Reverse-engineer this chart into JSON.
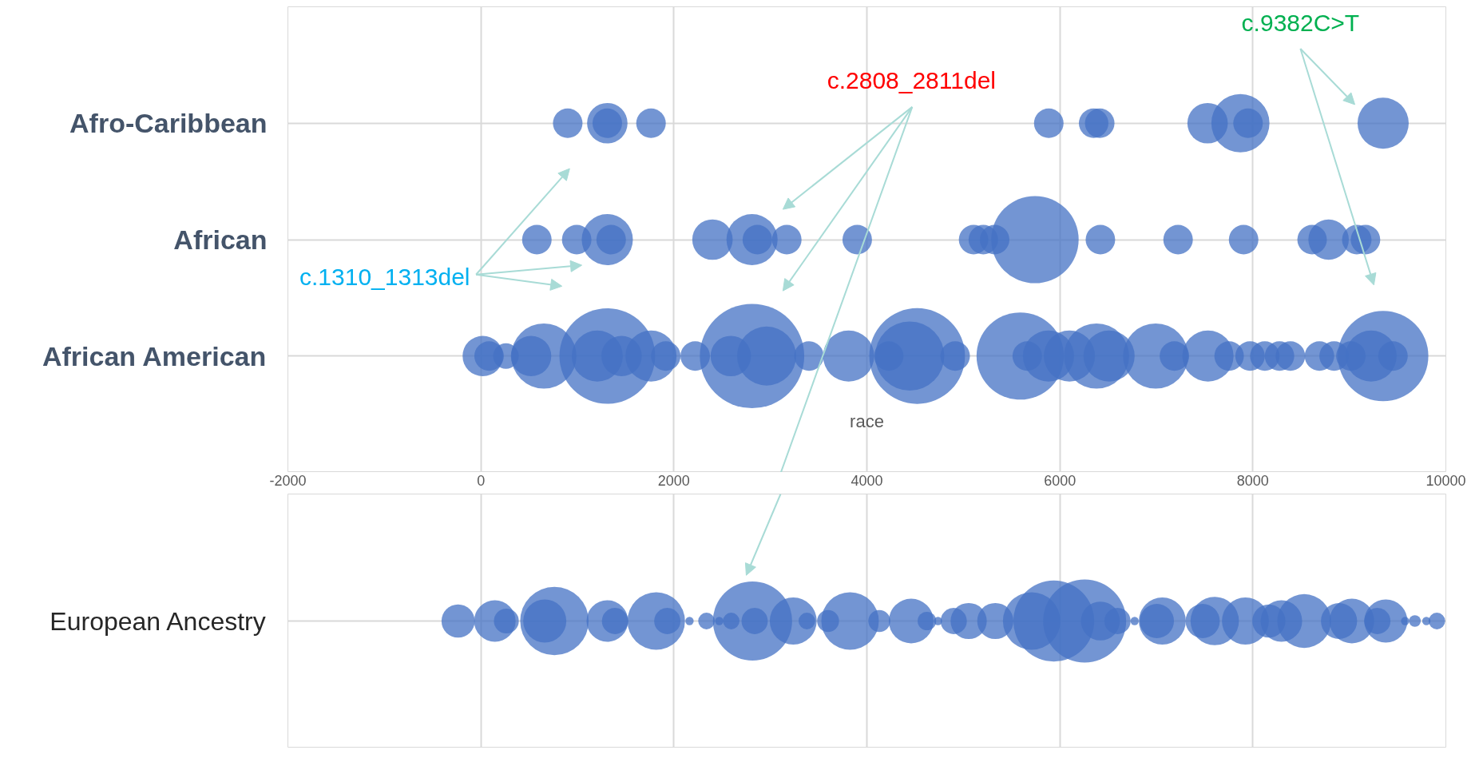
{
  "chart_data": [
    {
      "type": "bubble",
      "orientation": "horizontal",
      "xlabel": "race",
      "xlim": [
        -2000,
        10000
      ],
      "xticks": [
        -2000,
        0,
        2000,
        4000,
        6000,
        8000,
        10000
      ],
      "grid": true,
      "tick_labels": "y",
      "categories": [
        "Afro-Caribbean",
        "African",
        "African American"
      ],
      "annotations": [
        "c.1310_1313del",
        "c.2808_2811del",
        "c.9382C>T"
      ],
      "series": [
        {
          "color": "#4472c4",
          "values": [
            900,
            580,
            20
          ],
          "sizes": [
            0.08,
            0.08,
            0.15
          ]
        },
        {
          "color": "#4472c4",
          "values": [
            1310,
            993,
            85
          ],
          "sizes": [
            0.15,
            0.08,
            0.08
          ]
        },
        {
          "color": "#4472c4",
          "values": [
            1310,
            1310,
            260
          ],
          "sizes": [
            0.08,
            0.24,
            0.06
          ]
        },
        {
          "color": "#4472c4",
          "values": [
            1763,
            1350,
            520
          ],
          "sizes": [
            0.08,
            0.08,
            0.15
          ]
        },
        {
          "color": "#4472c4",
          "values": [
            5885,
            2400,
            653
          ],
          "sizes": [
            0.08,
            0.15,
            0.39
          ]
        },
        {
          "color": "#4472c4",
          "values": [
            6350,
            2810,
            1206
          ],
          "sizes": [
            0.08,
            0.24,
            0.24
          ]
        },
        {
          "color": "#4472c4",
          "values": [
            6413,
            2865,
            1310
          ],
          "sizes": [
            0.08,
            0.08,
            0.84
          ]
        },
        {
          "color": "#4472c4",
          "values": [
            7531,
            3170,
            1458
          ],
          "sizes": [
            0.15,
            0.08,
            0.15
          ]
        },
        {
          "color": "#4472c4",
          "values": [
            7871,
            3900,
            1763
          ],
          "sizes": [
            0.31,
            0.08,
            0.24
          ]
        },
        {
          "color": "#4472c4",
          "values": [
            7950,
            5106,
            1916
          ],
          "sizes": [
            0.08,
            0.08,
            0.08
          ]
        },
        {
          "color": "#4472c4",
          "values": [
            9350,
            5207,
            2221
          ],
          "sizes": [
            0.24,
            0.08,
            0.08
          ]
        },
        {
          "color": "#4472c4",
          "values": [
            null,
            5324,
            2590
          ],
          "sizes": [
            null,
            0.08,
            0.15
          ]
        },
        {
          "color": "#4472c4",
          "values": [
            null,
            5742,
            2810
          ],
          "sizes": [
            null,
            0.7,
            1.0
          ]
        },
        {
          "color": "#4472c4",
          "values": [
            null,
            6420,
            2961
          ],
          "sizes": [
            null,
            0.08,
            0.32
          ]
        },
        {
          "color": "#4472c4",
          "values": [
            null,
            7225,
            3400
          ],
          "sizes": [
            null,
            0.08,
            0.08
          ]
        },
        {
          "color": "#4472c4",
          "values": [
            null,
            7904,
            3811
          ],
          "sizes": [
            null,
            0.08,
            0.24
          ]
        },
        {
          "color": "#4472c4",
          "values": [
            null,
            8614,
            4227
          ],
          "sizes": [
            null,
            0.08,
            0.08
          ]
        },
        {
          "color": "#4472c4",
          "values": [
            null,
            8785,
            4444
          ],
          "sizes": [
            null,
            0.15,
            0.44
          ]
        },
        {
          "color": "#4472c4",
          "values": [
            null,
            9077,
            4521
          ],
          "sizes": [
            null,
            0.08,
            0.84
          ]
        },
        {
          "color": "#4472c4",
          "values": [
            null,
            9167,
            4915
          ],
          "sizes": [
            null,
            0.08,
            0.08
          ]
        },
        {
          "color": "#4472c4",
          "values": [
            null,
            null,
            5589
          ],
          "sizes": [
            null,
            null,
            0.7
          ]
        },
        {
          "color": "#4472c4",
          "values": [
            null,
            null,
            5662
          ],
          "sizes": [
            null,
            null,
            0.08
          ]
        },
        {
          "color": "#4472c4",
          "values": [
            null,
            null,
            5882
          ],
          "sizes": [
            null,
            null,
            0.24
          ]
        },
        {
          "color": "#4472c4",
          "values": [
            null,
            null,
            6099
          ],
          "sizes": [
            null,
            null,
            0.24
          ]
        },
        {
          "color": "#4472c4",
          "values": [
            null,
            null,
            6380
          ],
          "sizes": [
            null,
            null,
            0.39
          ]
        },
        {
          "color": "#4472c4",
          "values": [
            null,
            null,
            6510
          ],
          "sizes": [
            null,
            null,
            0.24
          ]
        },
        {
          "color": "#4472c4",
          "values": [
            null,
            null,
            6993
          ],
          "sizes": [
            null,
            null,
            0.39
          ]
        },
        {
          "color": "#4472c4",
          "values": [
            null,
            null,
            7187
          ],
          "sizes": [
            null,
            null,
            0.08
          ]
        },
        {
          "color": "#4472c4",
          "values": [
            null,
            null,
            7535
          ],
          "sizes": [
            null,
            null,
            0.24
          ]
        },
        {
          "color": "#4472c4",
          "values": [
            null,
            null,
            7754
          ],
          "sizes": [
            null,
            null,
            0.08
          ]
        },
        {
          "color": "#4472c4",
          "values": [
            null,
            null,
            7971
          ],
          "sizes": [
            null,
            null,
            0.08
          ]
        },
        {
          "color": "#4472c4",
          "values": [
            null,
            null,
            8124
          ],
          "sizes": [
            null,
            null,
            0.08
          ]
        },
        {
          "color": "#4472c4",
          "values": [
            null,
            null,
            8276
          ],
          "sizes": [
            null,
            null,
            0.08
          ]
        },
        {
          "color": "#4472c4",
          "values": [
            null,
            null,
            8389
          ],
          "sizes": [
            null,
            null,
            0.08
          ]
        },
        {
          "color": "#4472c4",
          "values": [
            null,
            null,
            8690
          ],
          "sizes": [
            null,
            null,
            0.08
          ]
        },
        {
          "color": "#4472c4",
          "values": [
            null,
            null,
            8842
          ],
          "sizes": [
            null,
            null,
            0.08
          ]
        },
        {
          "color": "#4472c4",
          "values": [
            null,
            null,
            9016
          ],
          "sizes": [
            null,
            null,
            0.08
          ]
        },
        {
          "color": "#4472c4",
          "values": [
            null,
            null,
            9225
          ],
          "sizes": [
            null,
            null,
            0.24
          ]
        },
        {
          "color": "#4472c4",
          "values": [
            null,
            null,
            9350
          ],
          "sizes": [
            null,
            null,
            0.75
          ]
        },
        {
          "color": "#4472c4",
          "values": [
            null,
            null,
            9452
          ],
          "sizes": [
            null,
            null,
            0.08
          ]
        }
      ]
    },
    {
      "type": "bubble",
      "orientation": "horizontal",
      "xlim": [
        -2000,
        10000
      ],
      "xticks": [
        -2000,
        0,
        2000,
        4000,
        6000,
        8000,
        10000
      ],
      "grid": true,
      "categories": [
        "European Ancestry"
      ],
      "series": [
        {
          "color": "#4472c4",
          "values": [
            -236
          ],
          "sizes": [
            0.16
          ]
        },
        {
          "color": "#4472c4",
          "values": [
            145
          ],
          "sizes": [
            0.25
          ]
        },
        {
          "color": "#4472c4",
          "values": [
            264
          ],
          "sizes": [
            0.09
          ]
        },
        {
          "color": "#4472c4",
          "values": [
            662
          ],
          "sizes": [
            0.27
          ]
        },
        {
          "color": "#4472c4",
          "values": [
            762
          ],
          "sizes": [
            0.68
          ]
        },
        {
          "color": "#4472c4",
          "values": [
            1310
          ],
          "sizes": [
            0.25
          ]
        },
        {
          "color": "#4472c4",
          "values": [
            1390
          ],
          "sizes": [
            0.1
          ]
        },
        {
          "color": "#4472c4",
          "values": [
            1817
          ],
          "sizes": [
            0.48
          ]
        },
        {
          "color": "#4472c4",
          "values": [
            1932
          ],
          "sizes": [
            0.1
          ]
        },
        {
          "color": "#4472c4",
          "values": [
            2162
          ],
          "sizes": [
            0.01
          ]
        },
        {
          "color": "#4472c4",
          "values": [
            2338
          ],
          "sizes": [
            0.04
          ]
        },
        {
          "color": "#4472c4",
          "values": [
            2470
          ],
          "sizes": [
            0.01
          ]
        },
        {
          "color": "#4472c4",
          "values": [
            2594
          ],
          "sizes": [
            0.04
          ]
        },
        {
          "color": "#4472c4",
          "values": [
            2815
          ],
          "sizes": [
            0.91
          ]
        },
        {
          "color": "#4472c4",
          "values": [
            2837
          ],
          "sizes": [
            0.1
          ]
        },
        {
          "color": "#4472c4",
          "values": [
            3237
          ],
          "sizes": [
            0.32
          ]
        },
        {
          "color": "#4472c4",
          "values": [
            3378
          ],
          "sizes": [
            0.04
          ]
        },
        {
          "color": "#4472c4",
          "values": [
            3598
          ],
          "sizes": [
            0.07
          ]
        },
        {
          "color": "#4472c4",
          "values": [
            3826
          ],
          "sizes": [
            0.48
          ]
        },
        {
          "color": "#4472c4",
          "values": [
            4129
          ],
          "sizes": [
            0.07
          ]
        },
        {
          "color": "#4472c4",
          "values": [
            4459
          ],
          "sizes": [
            0.29
          ]
        },
        {
          "color": "#4472c4",
          "values": [
            4622
          ],
          "sizes": [
            0.05
          ]
        },
        {
          "color": "#4472c4",
          "values": [
            4737
          ],
          "sizes": [
            0.01
          ]
        },
        {
          "color": "#4472c4",
          "values": [
            4900
          ],
          "sizes": [
            0.1
          ]
        },
        {
          "color": "#4472c4",
          "values": [
            5055
          ],
          "sizes": [
            0.19
          ]
        },
        {
          "color": "#4472c4",
          "values": [
            5331
          ],
          "sizes": [
            0.19
          ]
        },
        {
          "color": "#4472c4",
          "values": [
            5708
          ],
          "sizes": [
            0.48
          ]
        },
        {
          "color": "#4472c4",
          "values": [
            5937
          ],
          "sizes": [
            0.95
          ]
        },
        {
          "color": "#4472c4",
          "values": [
            6257
          ],
          "sizes": [
            1.0
          ]
        },
        {
          "color": "#4472c4",
          "values": [
            6420
          ],
          "sizes": [
            0.22
          ]
        },
        {
          "color": "#4472c4",
          "values": [
            6597
          ],
          "sizes": [
            0.1
          ]
        },
        {
          "color": "#4472c4",
          "values": [
            6775
          ],
          "sizes": [
            0.01
          ]
        },
        {
          "color": "#4472c4",
          "values": [
            7005
          ],
          "sizes": [
            0.17
          ]
        },
        {
          "color": "#4472c4",
          "values": [
            7062
          ],
          "sizes": [
            0.32
          ]
        },
        {
          "color": "#4472c4",
          "values": [
            7480
          ],
          "sizes": [
            0.17
          ]
        },
        {
          "color": "#4472c4",
          "values": [
            7605
          ],
          "sizes": [
            0.34
          ]
        },
        {
          "color": "#4472c4",
          "values": [
            7923
          ],
          "sizes": [
            0.32
          ]
        },
        {
          "color": "#4472c4",
          "values": [
            8166
          ],
          "sizes": [
            0.16
          ]
        },
        {
          "color": "#4472c4",
          "values": [
            8296
          ],
          "sizes": [
            0.25
          ]
        },
        {
          "color": "#4472c4",
          "values": [
            8532
          ],
          "sizes": [
            0.42
          ]
        },
        {
          "color": "#4472c4",
          "values": [
            8893
          ],
          "sizes": [
            0.19
          ]
        },
        {
          "color": "#4472c4",
          "values": [
            9026
          ],
          "sizes": [
            0.29
          ]
        },
        {
          "color": "#4472c4",
          "values": [
            9290
          ],
          "sizes": [
            0.1
          ]
        },
        {
          "color": "#4472c4",
          "values": [
            9378
          ],
          "sizes": [
            0.27
          ]
        },
        {
          "color": "#4472c4",
          "values": [
            9578
          ],
          "sizes": [
            0.01
          ]
        },
        {
          "color": "#4472c4",
          "values": [
            9679
          ],
          "sizes": [
            0.02
          ]
        },
        {
          "color": "#4472c4",
          "values": [
            9798
          ],
          "sizes": [
            0.01
          ]
        },
        {
          "color": "#4472c4",
          "values": [
            9907
          ],
          "sizes": [
            0.04
          ]
        }
      ]
    }
  ]
}
